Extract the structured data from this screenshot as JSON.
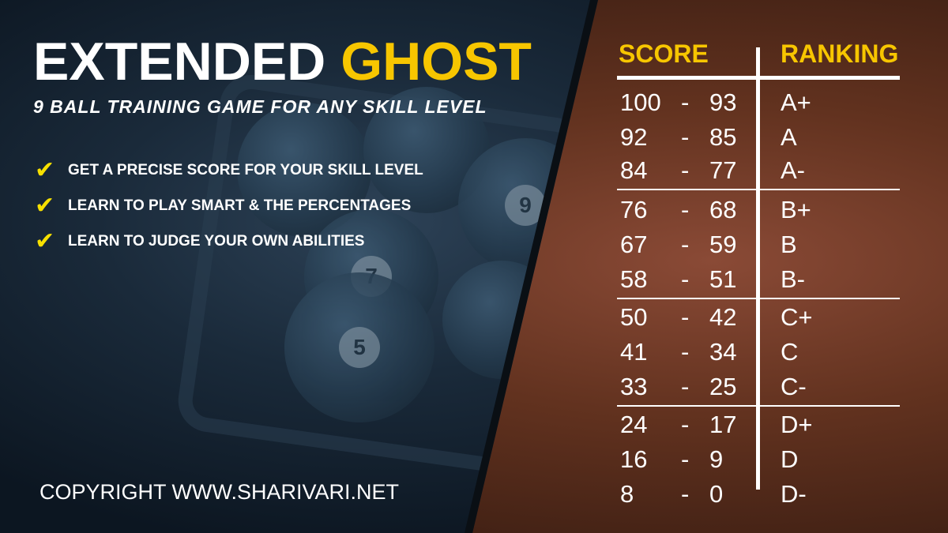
{
  "title": {
    "main": "EXTENDED",
    "accent": "GHOST"
  },
  "subtitle": "9 BALL TRAINING GAME FOR ANY SKILL LEVEL",
  "bullets": [
    {
      "icon": "checkmark-icon",
      "text": "GET A PRECISE SCORE FOR YOUR SKILL LEVEL"
    },
    {
      "icon": "checkmark-icon",
      "text": "LEARN TO PLAY SMART & THE PERCENTAGES"
    },
    {
      "icon": "checkmark-icon",
      "text": "LEARN TO JUDGE YOUR OWN ABILITIES"
    }
  ],
  "copyright": "COPYRIGHT WWW.SHARIVARI.NET",
  "background_balls": [
    "7",
    "9",
    "5"
  ],
  "table": {
    "headers": {
      "score": "SCORE",
      "ranking": "RANKING"
    },
    "separator": "-",
    "rows": [
      {
        "high": "100",
        "low": "93",
        "rank": "A+"
      },
      {
        "high": "92",
        "low": "85",
        "rank": "A"
      },
      {
        "high": "84",
        "low": "77",
        "rank": "A-"
      },
      {
        "high": "76",
        "low": "68",
        "rank": "B+"
      },
      {
        "high": "67",
        "low": "59",
        "rank": "B"
      },
      {
        "high": "58",
        "low": "51",
        "rank": "B-"
      },
      {
        "high": "50",
        "low": "42",
        "rank": "C+"
      },
      {
        "high": "41",
        "low": "34",
        "rank": "C"
      },
      {
        "high": "33",
        "low": "25",
        "rank": "C-"
      },
      {
        "high": "24",
        "low": "17",
        "rank": "D+"
      },
      {
        "high": "16",
        "low": "9",
        "rank": "D"
      },
      {
        "high": "8",
        "low": "0",
        "rank": "D-"
      }
    ]
  },
  "colors": {
    "accent": "#f7c600",
    "check": "#f7e000",
    "left_bg": "#0e1a26",
    "right_bg": "#62321f"
  }
}
